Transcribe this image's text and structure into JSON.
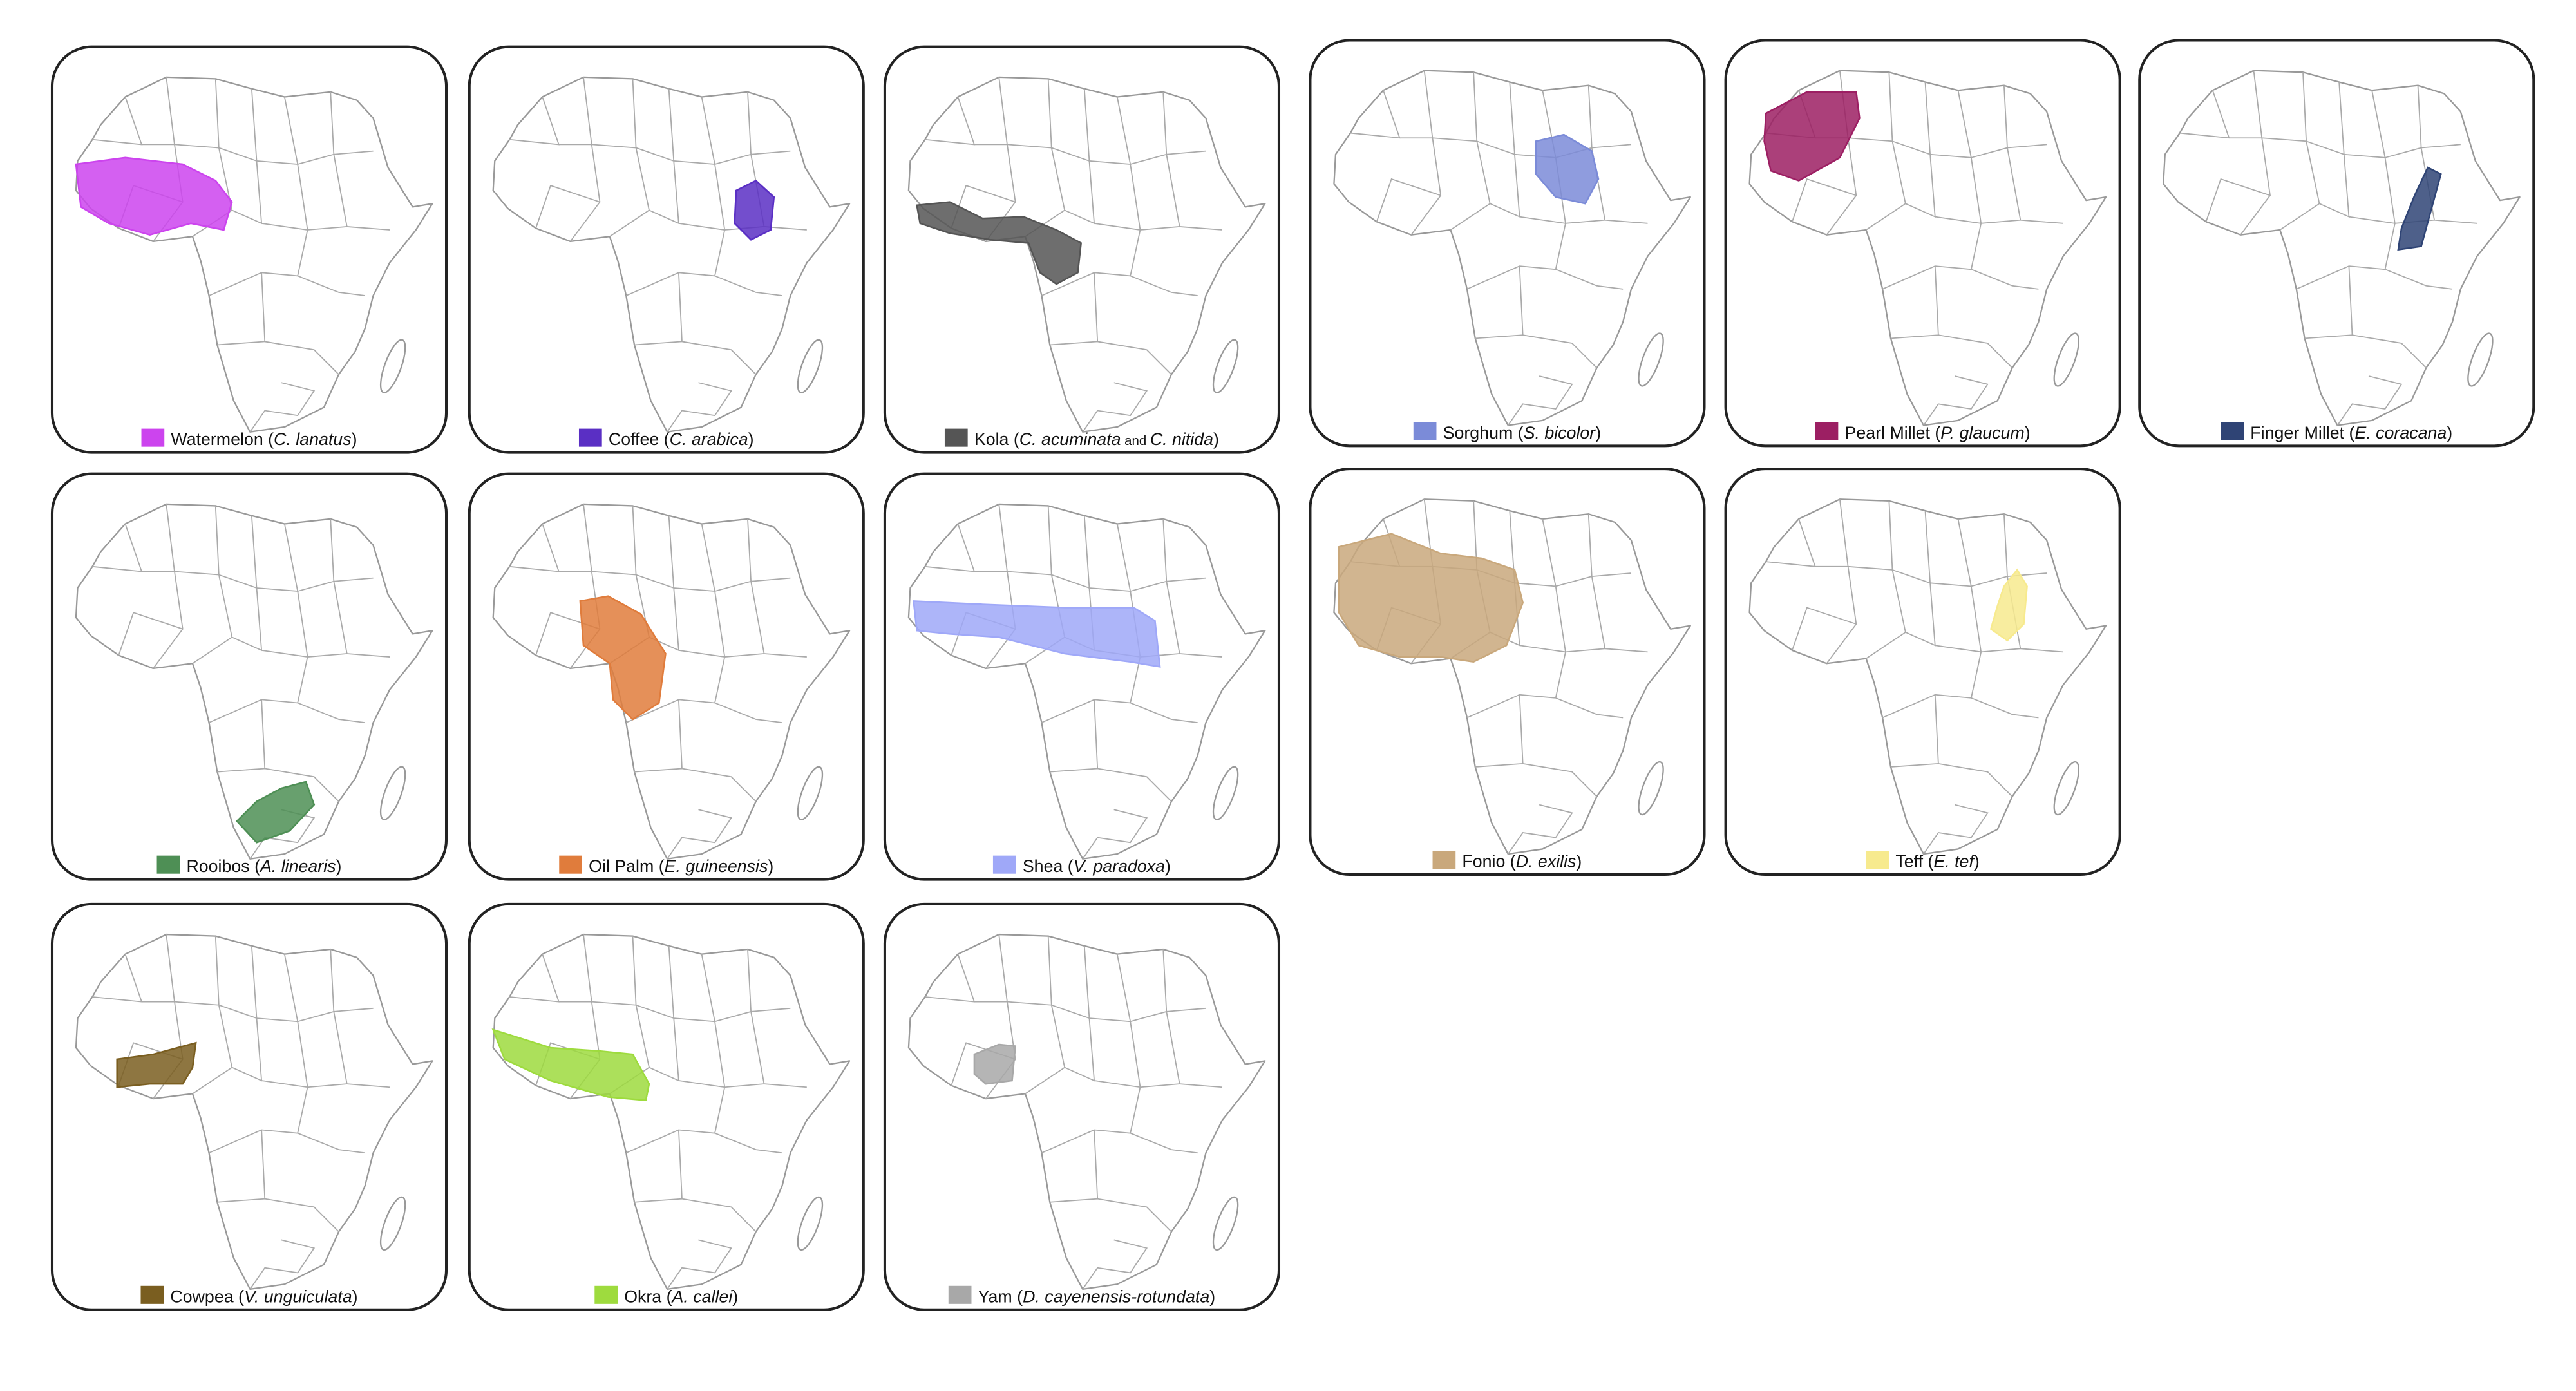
{
  "panels": [
    {
      "label": [
        "Watermelon (",
        "C. lanatus",
        ")"
      ],
      "color": "#cc44ee"
    },
    {
      "label": [
        "Coffee (",
        "C. arabica",
        ")"
      ],
      "color": "#5a2fc4"
    },
    {
      "label": [
        "Kola (",
        "C. acuminata",
        " and ",
        "C. nitida",
        ")"
      ],
      "color": "#555555"
    },
    {
      "label": [
        "Sorghum (",
        "S. bicolor",
        ")"
      ],
      "color": "#7b8bd8"
    },
    {
      "label": [
        "Pearl Millet (",
        "P. glaucum",
        ")"
      ],
      "color": "#9c1f63"
    },
    {
      "label": [
        "Finger Millet (",
        "E. coracana",
        ")"
      ],
      "color": "#2f4475"
    },
    {
      "label": [
        "Rooibos (",
        "A. linearis",
        ")"
      ],
      "color": "#4e8f55"
    },
    {
      "label": [
        "Oil Palm (",
        "E. guineensis",
        ")"
      ],
      "color": "#e07c3c"
    },
    {
      "label": [
        "Shea (",
        "V. paradoxa",
        ")"
      ],
      "color": "#9fa8f8"
    },
    {
      "label": [
        "Fonio (",
        "D. exilis",
        ")"
      ],
      "color": "#c9a87c"
    },
    {
      "label": [
        "Teff (",
        "E. tef",
        ")"
      ],
      "color": "#f7ea8e"
    },
    {
      "label": [
        "Cowpea (",
        "V. unguiculata",
        ")"
      ],
      "color": "#7a5e20"
    },
    {
      "label": [
        "Okra (",
        "A. callei",
        ")"
      ],
      "color": "#9edb3e"
    },
    {
      "label": [
        "Yam (",
        "D. cayenensis-rotundata",
        ")"
      ],
      "color": "#a8a8a8"
    }
  ]
}
